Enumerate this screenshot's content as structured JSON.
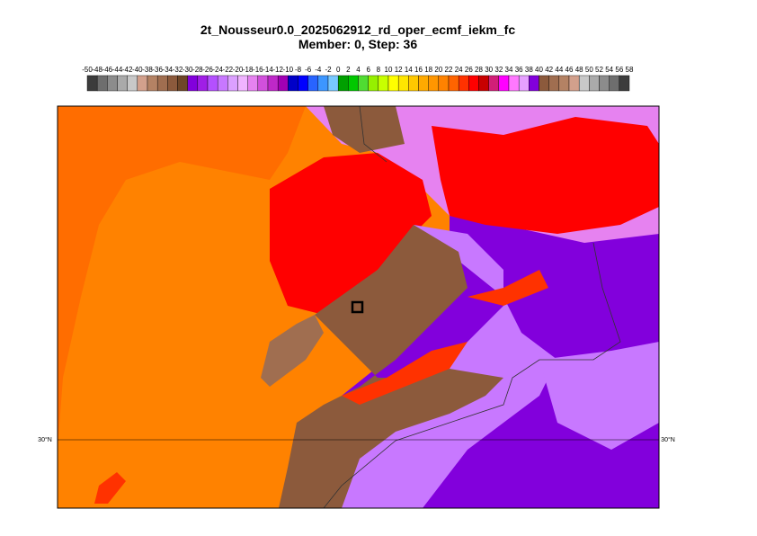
{
  "header": {
    "title": "2t_Nousseur0.0_2025062912_rd_oper_ecmf_iekm_fc",
    "subtitle": "Member: 0, Step: 36"
  },
  "colorbar": {
    "labels": [
      "-50",
      "-48",
      "-46",
      "-44",
      "-42",
      "-40",
      "-38",
      "-36",
      "-34",
      "-32",
      "-30",
      "-28",
      "-26",
      "-24",
      "-22",
      "-20",
      "-18",
      "-16",
      "-14",
      "-12",
      "-10",
      "-8",
      "-6",
      "-4",
      "-2",
      "0",
      "2",
      "4",
      "6",
      "8",
      "10",
      "12",
      "14",
      "16",
      "18",
      "20",
      "22",
      "24",
      "26",
      "28",
      "30",
      "32",
      "34",
      "36",
      "38",
      "40",
      "42",
      "44",
      "46",
      "48",
      "50",
      "52",
      "54",
      "56",
      "58"
    ],
    "colors": [
      "#3c3c3c",
      "#6e6e6e",
      "#8c8c8c",
      "#aaaaaa",
      "#c8c8c8",
      "#d2a08c",
      "#b48264",
      "#a06e50",
      "#8c5a3c",
      "#6e4628",
      "#8200dc",
      "#a01ee6",
      "#b450ff",
      "#c878ff",
      "#dca0ff",
      "#f0b4ff",
      "#e682f0",
      "#d250dc",
      "#be28c8",
      "#a000b4",
      "#0000c8",
      "#0000ff",
      "#2864ff",
      "#3c96ff",
      "#78c8ff",
      "#00a000",
      "#00c800",
      "#50dc32",
      "#96f000",
      "#c8ff00",
      "#ffff00",
      "#ffe600",
      "#ffc800",
      "#ffaa00",
      "#ff9600",
      "#ff8200",
      "#ff6400",
      "#ff3200",
      "#ff0000",
      "#c80000",
      "#d21e78",
      "#ff00ff",
      "#ff78ff",
      "#e6a0ff",
      "#8200dc",
      "#8c5a3c",
      "#a06e50",
      "#b48264",
      "#d2a08c",
      "#c8c8c8",
      "#aaaaaa",
      "#8c8c8c",
      "#6e6e6e",
      "#3c3c3c"
    ]
  },
  "map": {
    "lat_label": "30°N"
  }
}
